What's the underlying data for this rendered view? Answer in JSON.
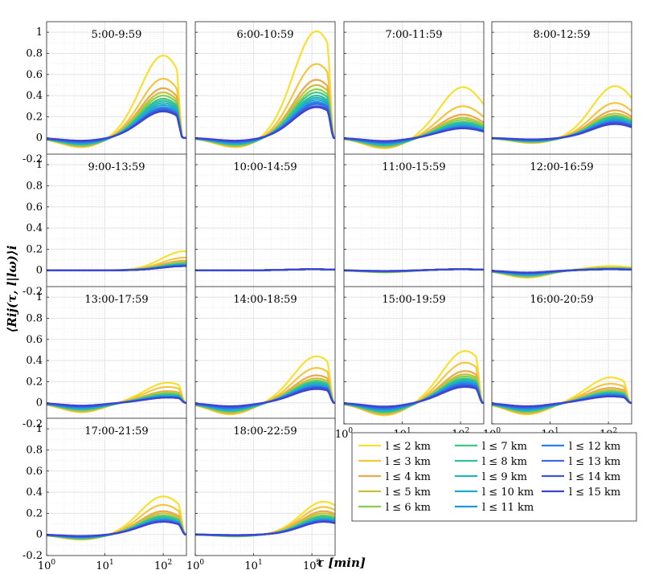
{
  "chart_data": {
    "type": "line",
    "ylabel": "⟨Rij(τ, l|lω)⟩i",
    "xlabel": "τ [min]",
    "x_scale": "log",
    "xlim": [
      1,
      250
    ],
    "ylim": [
      -0.2,
      1.1
    ],
    "y_ticks": [
      "1",
      "0.8",
      "0.6",
      "0.4",
      "0.2",
      "0",
      "-0.2"
    ],
    "x_tick_base": "10",
    "x_tick_exponents": [
      "0",
      "1",
      "2"
    ],
    "grid": true,
    "series_names": [
      "l ≤ 2 km",
      "l ≤ 3 km",
      "l ≤ 4 km",
      "l ≤ 5 km",
      "l ≤ 6 km",
      "l ≤ 7 km",
      "l ≤ 8 km",
      "l ≤ 9 km",
      "l ≤ 10 km",
      "l ≤ 11 km",
      "l ≤ 12 km",
      "l ≤ 13 km",
      "l ≤ 14 km",
      "l ≤ 15 km"
    ],
    "series_colors": [
      "#f7e032",
      "#f5c540",
      "#e8aa48",
      "#c8c03a",
      "#86cf4a",
      "#3cc687",
      "#2fbfa0",
      "#24b5b6",
      "#20a8cc",
      "#1f97de",
      "#2a7ee6",
      "#3a68e6",
      "#3b54dc",
      "#3d44cf"
    ],
    "legend_location": "lower-right",
    "panels": [
      {
        "title": "5:00-9:59",
        "peak_tau": 100,
        "peaks": [
          0.78,
          0.56,
          0.47,
          0.43,
          0.4,
          0.37,
          0.35,
          0.33,
          0.31,
          0.29,
          0.28,
          0.27,
          0.26,
          0.25
        ],
        "dip_tau": 4,
        "dip": -0.09,
        "cutoff": 210
      },
      {
        "title": "6:00-10:59",
        "peak_tau": 120,
        "peaks": [
          1.01,
          0.7,
          0.55,
          0.5,
          0.46,
          0.43,
          0.4,
          0.38,
          0.36,
          0.34,
          0.33,
          0.32,
          0.3,
          0.29
        ],
        "dip_tau": 5,
        "dip": -0.09,
        "cutoff": 230
      },
      {
        "title": "7:00-11:59",
        "peak_tau": 110,
        "peaks": [
          0.48,
          0.3,
          0.22,
          0.19,
          0.17,
          0.15,
          0.14,
          0.13,
          0.12,
          0.11,
          0.1,
          0.1,
          0.09,
          0.09
        ],
        "dip_tau": 5,
        "dip": -0.1,
        "cutoff": 0
      },
      {
        "title": "8:00-12:59",
        "peak_tau": 130,
        "peaks": [
          0.49,
          0.33,
          0.26,
          0.23,
          0.21,
          0.2,
          0.19,
          0.18,
          0.17,
          0.16,
          0.15,
          0.15,
          0.14,
          0.13
        ],
        "dip_tau": 5,
        "dip": -0.05,
        "cutoff": 0
      },
      {
        "title": "9:00-13:59",
        "peak_tau": 230,
        "peaks": [
          0.18,
          0.12,
          0.09,
          0.08,
          0.07,
          0.06,
          0.06,
          0.05,
          0.05,
          0.05,
          0.04,
          0.04,
          0.04,
          0.04
        ],
        "dip_tau": 5,
        "dip": 0.0,
        "cutoff": 0
      },
      {
        "title": "10:00-14:59",
        "peak_tau": 100,
        "peaks": [
          0.01,
          0.01,
          0.01,
          0.01,
          0.01,
          0.01,
          0.01,
          0.01,
          0.01,
          0.01,
          0.01,
          0.01,
          0.01,
          0.01
        ],
        "dip_tau": 5,
        "dip": 0.0,
        "cutoff": 0
      },
      {
        "title": "11:00-15:59",
        "peak_tau": 100,
        "peaks": [
          0.01,
          0.01,
          0.01,
          0.01,
          0.01,
          0.01,
          0.01,
          0.01,
          0.01,
          0.01,
          0.01,
          0.01,
          0.01,
          0.01
        ],
        "dip_tau": 5,
        "dip": -0.02,
        "cutoff": 0
      },
      {
        "title": "12:00-16:59",
        "peak_tau": 110,
        "peaks": [
          0.04,
          0.03,
          0.02,
          0.02,
          0.02,
          0.02,
          0.01,
          0.01,
          0.01,
          0.01,
          0.01,
          0.01,
          0.01,
          0.01
        ],
        "dip_tau": 4,
        "dip": -0.07,
        "cutoff": 0
      },
      {
        "title": "13:00-17:59",
        "peak_tau": 120,
        "peaks": [
          0.19,
          0.15,
          0.11,
          0.1,
          0.09,
          0.08,
          0.07,
          0.07,
          0.06,
          0.06,
          0.05,
          0.05,
          0.05,
          0.05
        ],
        "dip_tau": 4,
        "dip": -0.09,
        "cutoff": 230
      },
      {
        "title": "14:00-18:59",
        "peak_tau": 120,
        "peaks": [
          0.44,
          0.33,
          0.26,
          0.23,
          0.21,
          0.2,
          0.19,
          0.18,
          0.17,
          0.16,
          0.15,
          0.15,
          0.14,
          0.13
        ],
        "dip_tau": 4,
        "dip": -0.11,
        "cutoff": 230
      },
      {
        "title": "15:00-19:59",
        "peak_tau": 120,
        "peaks": [
          0.49,
          0.38,
          0.3,
          0.27,
          0.25,
          0.23,
          0.22,
          0.21,
          0.2,
          0.19,
          0.18,
          0.17,
          0.16,
          0.15
        ],
        "dip_tau": 5,
        "dip": -0.12,
        "cutoff": 230
      },
      {
        "title": "16:00-20:59",
        "peak_tau": 110,
        "peaks": [
          0.24,
          0.18,
          0.14,
          0.12,
          0.11,
          0.1,
          0.09,
          0.09,
          0.08,
          0.08,
          0.07,
          0.07,
          0.06,
          0.06
        ],
        "dip_tau": 4,
        "dip": -0.11,
        "cutoff": 230
      },
      {
        "title": "17:00-21:59",
        "peak_tau": 100,
        "peaks": [
          0.36,
          0.28,
          0.22,
          0.2,
          0.18,
          0.17,
          0.16,
          0.15,
          0.14,
          0.14,
          0.13,
          0.13,
          0.12,
          0.12
        ],
        "dip_tau": 4,
        "dip": -0.05,
        "cutoff": 230
      },
      {
        "title": "18:00-22:59",
        "peak_tau": 160,
        "peaks": [
          0.31,
          0.26,
          0.22,
          0.2,
          0.18,
          0.17,
          0.16,
          0.15,
          0.14,
          0.14,
          0.13,
          0.13,
          0.12,
          0.12
        ],
        "dip_tau": 5,
        "dip": -0.02,
        "cutoff": 0
      }
    ]
  }
}
